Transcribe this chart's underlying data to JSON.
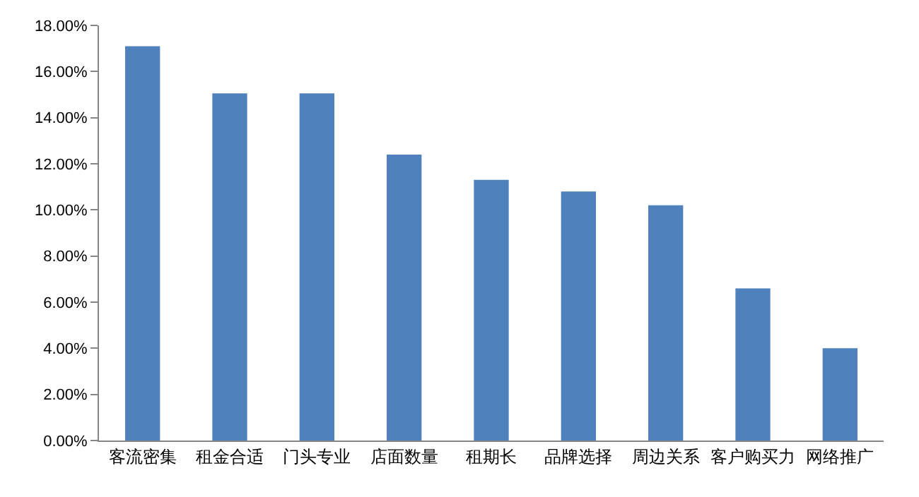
{
  "chart_data": {
    "type": "bar",
    "categories": [
      "客流密集",
      "租金合适",
      "门头专业",
      "店面数量",
      "租期长",
      "品牌选择",
      "周边关系",
      "客户购买力",
      "网络推广"
    ],
    "values": [
      17.1,
      15.05,
      15.05,
      12.4,
      11.3,
      10.8,
      10.2,
      6.6,
      4.0
    ],
    "color": "#4f81bd",
    "ylim": [
      0,
      18
    ],
    "yticks": [
      {
        "value": 0,
        "label": "0.00%"
      },
      {
        "value": 2,
        "label": "2.00%"
      },
      {
        "value": 4,
        "label": "4.00%"
      },
      {
        "value": 6,
        "label": "6.00%"
      },
      {
        "value": 8,
        "label": "8.00%"
      },
      {
        "value": 10,
        "label": "10.00%"
      },
      {
        "value": 12,
        "label": "12.00%"
      },
      {
        "value": 14,
        "label": "14.00%"
      },
      {
        "value": 16,
        "label": "16.00%"
      },
      {
        "value": 18,
        "label": "18.00%"
      }
    ],
    "grid": false
  }
}
